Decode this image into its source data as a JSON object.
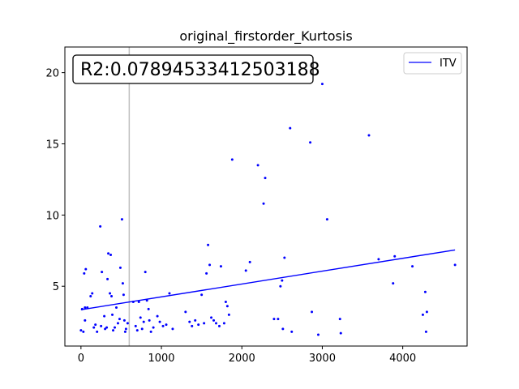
{
  "chart_data": {
    "type": "scatter",
    "title": "original_firstorder_Kurtosis",
    "annotation": "R2:0.07894533412503188",
    "xlim": [
      -200,
      4800
    ],
    "ylim": [
      0.8,
      21.8
    ],
    "x_ticks": [
      0,
      1000,
      2000,
      3000,
      4000
    ],
    "y_ticks": [
      5,
      10,
      15,
      20
    ],
    "grid": false,
    "legend": {
      "position": "top-right",
      "entries": [
        "ITV"
      ]
    },
    "vline_x": 600,
    "colors": {
      "points": "#0000ff",
      "fit": "#0000ff",
      "vline": "#bfbfbf"
    },
    "fit_line": {
      "x": [
        0,
        4650
      ],
      "y": [
        3.35,
        7.55
      ]
    },
    "points": [
      [
        0,
        1.9
      ],
      [
        30,
        1.8
      ],
      [
        15,
        3.4
      ],
      [
        40,
        5.9
      ],
      [
        60,
        6.2
      ],
      [
        50,
        3.5
      ],
      [
        80,
        3.5
      ],
      [
        50,
        2.6
      ],
      [
        120,
        4.3
      ],
      [
        140,
        4.5
      ],
      [
        160,
        2.1
      ],
      [
        180,
        2.3
      ],
      [
        200,
        1.8
      ],
      [
        240,
        9.2
      ],
      [
        260,
        6.0
      ],
      [
        250,
        2.2
      ],
      [
        290,
        2.9
      ],
      [
        300,
        2.0
      ],
      [
        320,
        2.1
      ],
      [
        330,
        5.5
      ],
      [
        340,
        7.3
      ],
      [
        370,
        7.2
      ],
      [
        360,
        4.5
      ],
      [
        380,
        4.3
      ],
      [
        390,
        3.0
      ],
      [
        400,
        1.9
      ],
      [
        420,
        2.1
      ],
      [
        440,
        3.5
      ],
      [
        460,
        2.4
      ],
      [
        480,
        2.7
      ],
      [
        490,
        6.3
      ],
      [
        510,
        9.7
      ],
      [
        520,
        5.2
      ],
      [
        530,
        4.4
      ],
      [
        540,
        2.6
      ],
      [
        550,
        1.8
      ],
      [
        560,
        2.0
      ],
      [
        580,
        2.4
      ],
      [
        650,
        3.9
      ],
      [
        680,
        2.2
      ],
      [
        700,
        1.9
      ],
      [
        720,
        3.9
      ],
      [
        740,
        2.8
      ],
      [
        760,
        2.0
      ],
      [
        780,
        2.5
      ],
      [
        800,
        6.0
      ],
      [
        820,
        4.0
      ],
      [
        840,
        3.4
      ],
      [
        850,
        2.6
      ],
      [
        870,
        1.8
      ],
      [
        900,
        2.1
      ],
      [
        950,
        2.9
      ],
      [
        980,
        2.5
      ],
      [
        1020,
        2.2
      ],
      [
        1060,
        2.3
      ],
      [
        1100,
        4.5
      ],
      [
        1140,
        2.0
      ],
      [
        1300,
        3.2
      ],
      [
        1350,
        2.5
      ],
      [
        1380,
        2.2
      ],
      [
        1420,
        2.6
      ],
      [
        1460,
        2.3
      ],
      [
        1500,
        4.4
      ],
      [
        1530,
        2.4
      ],
      [
        1560,
        5.9
      ],
      [
        1580,
        7.9
      ],
      [
        1600,
        6.5
      ],
      [
        1620,
        2.8
      ],
      [
        1650,
        2.6
      ],
      [
        1680,
        2.4
      ],
      [
        1720,
        2.2
      ],
      [
        1740,
        6.4
      ],
      [
        1780,
        2.4
      ],
      [
        1800,
        3.9
      ],
      [
        1820,
        3.6
      ],
      [
        1840,
        3.0
      ],
      [
        1880,
        13.9
      ],
      [
        2050,
        6.1
      ],
      [
        2100,
        6.7
      ],
      [
        2200,
        13.5
      ],
      [
        2270,
        10.8
      ],
      [
        2290,
        12.6
      ],
      [
        2400,
        2.7
      ],
      [
        2450,
        2.7
      ],
      [
        2480,
        5.0
      ],
      [
        2500,
        5.4
      ],
      [
        2510,
        2.0
      ],
      [
        2530,
        7.0
      ],
      [
        2600,
        16.1
      ],
      [
        2620,
        1.8
      ],
      [
        2850,
        15.1
      ],
      [
        2870,
        3.2
      ],
      [
        2950,
        1.6
      ],
      [
        3000,
        19.2
      ],
      [
        3060,
        9.7
      ],
      [
        3220,
        2.7
      ],
      [
        3230,
        1.7
      ],
      [
        3580,
        15.6
      ],
      [
        3700,
        6.9
      ],
      [
        3880,
        5.2
      ],
      [
        3900,
        7.1
      ],
      [
        4120,
        6.4
      ],
      [
        4250,
        3.0
      ],
      [
        4280,
        4.6
      ],
      [
        4290,
        1.8
      ],
      [
        4300,
        3.2
      ],
      [
        4650,
        6.5
      ]
    ]
  }
}
